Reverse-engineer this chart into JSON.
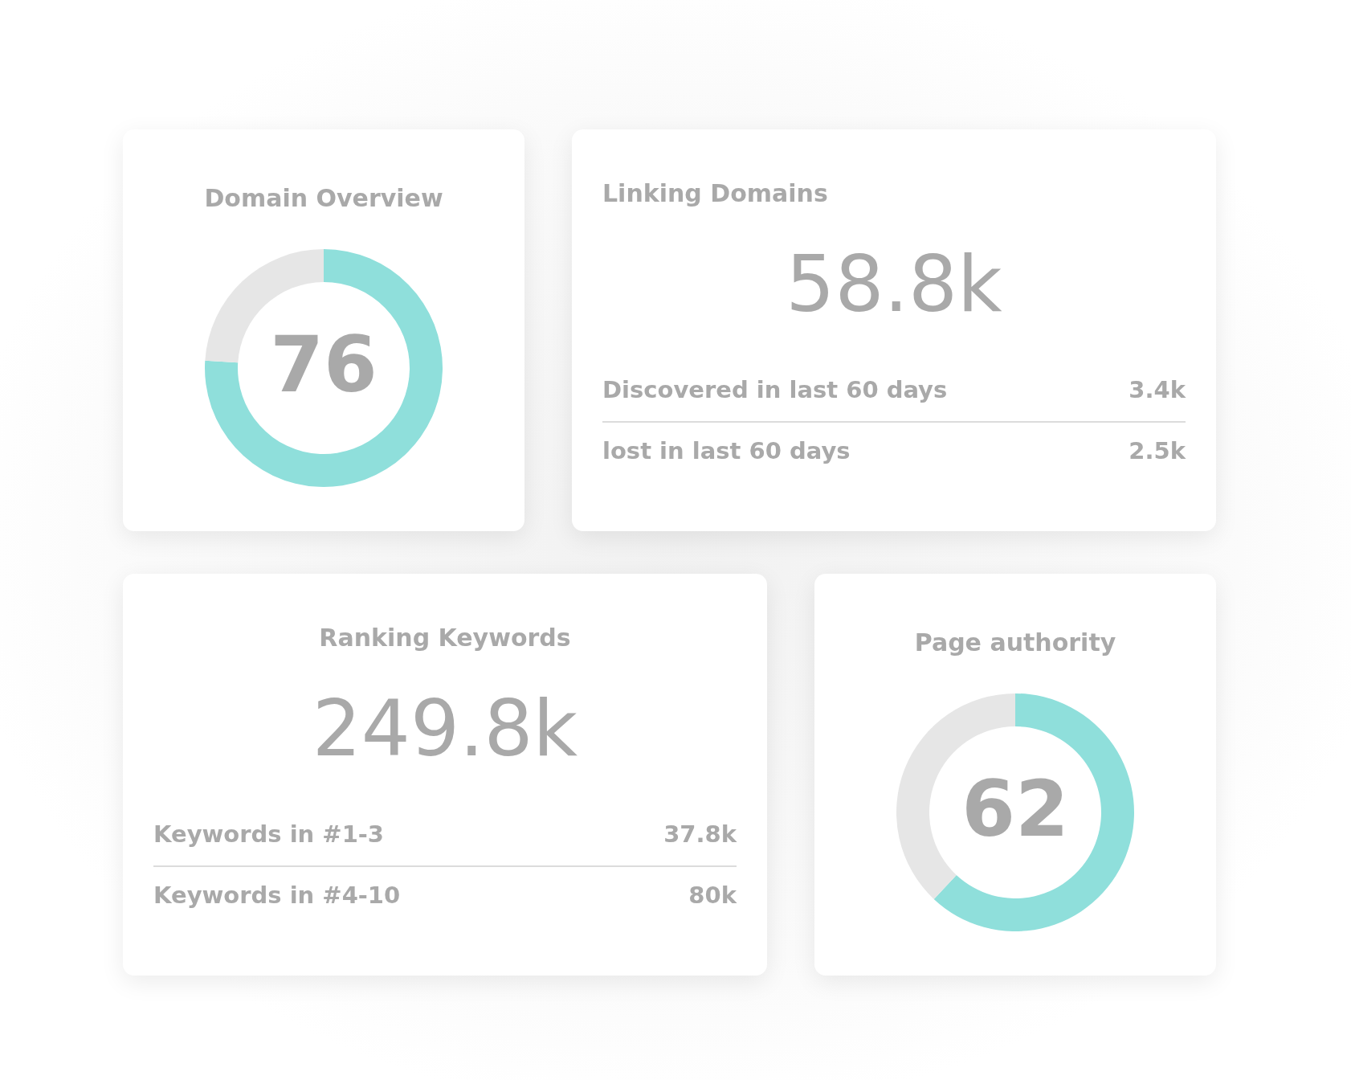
{
  "chart_data": [
    {
      "type": "donut",
      "title": "Domain Overview",
      "categories": [
        null,
        null
      ],
      "values": [
        76,
        24
      ],
      "colors": [
        "#8fdfdb",
        "#e6e6e6"
      ],
      "annotations": [
        "76"
      ]
    },
    {
      "type": "other",
      "title": "Linking Domains",
      "annotations": [
        "58.8k",
        "Discovered in last 60 days",
        "3.4k",
        "lost in last 60 days",
        "2.5k"
      ]
    },
    {
      "type": "other",
      "title": "Ranking Keywords",
      "annotations": [
        "249.8k",
        "Keywords in #1-3",
        "37.8k",
        "Keywords in #4-10",
        "80k"
      ]
    },
    {
      "type": "donut",
      "title": "Page authority",
      "categories": [
        null,
        null
      ],
      "values": [
        62,
        38
      ],
      "colors": [
        "#8fdfdb",
        "#e6e6e6"
      ],
      "annotations": [
        "62"
      ]
    }
  ]
}
